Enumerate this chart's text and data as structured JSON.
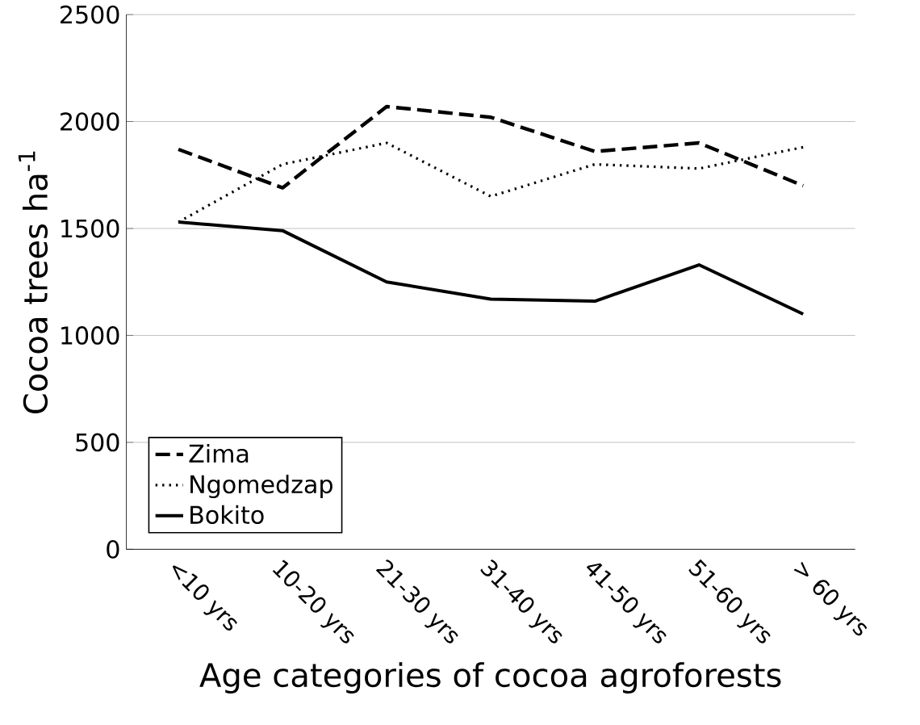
{
  "chart_data": {
    "type": "line",
    "xlabel": "Age categories of cocoa agroforests",
    "ylabel": "Cocoa trees ha$^{-1}$",
    "categories": [
      "<10 yrs",
      "10-20 yrs",
      "21-30 yrs",
      "31-40 yrs",
      "41-50 yrs",
      "51-60 yrs",
      "> 60 yrs"
    ],
    "series": [
      {
        "name": "Zima",
        "color": "#000000",
        "line_style": "dashed",
        "values": [
          1870,
          1690,
          2070,
          2020,
          1860,
          1900,
          1700
        ]
      },
      {
        "name": "Ngomedzap",
        "color": "#000000",
        "line_style": "dotted",
        "values": [
          1530,
          1800,
          1900,
          1650,
          1800,
          1780,
          1880
        ]
      },
      {
        "name": "Bokito",
        "color": "#000000",
        "line_style": "solid",
        "values": [
          1530,
          1490,
          1250,
          1170,
          1160,
          1330,
          1100
        ]
      }
    ],
    "ylim": [
      0,
      2500
    ],
    "yticks": [
      0,
      500,
      1000,
      1500,
      2000,
      2500
    ],
    "grid": "y",
    "legend": "bottom left",
    "marker": "none"
  }
}
